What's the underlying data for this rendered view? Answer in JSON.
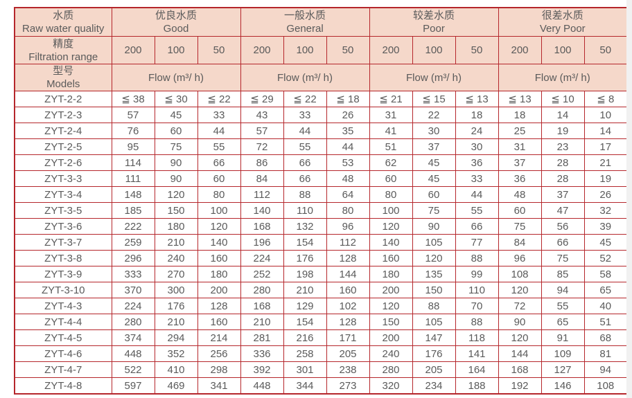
{
  "colors": {
    "border": "#b5262b",
    "header_fill": "#f5d8ca",
    "text": "#5a5a5a",
    "scrollbar_track": "#f1f1f1"
  },
  "table": {
    "col1": {
      "quality": {
        "zh": "水质",
        "en": "Raw water quality"
      },
      "precision": {
        "zh": "精度",
        "en": "Filtration range"
      },
      "models": {
        "zh": "型号",
        "en": "Models"
      }
    },
    "quality_groups": [
      {
        "zh": "优良水质",
        "en": "Good"
      },
      {
        "zh": "一般水质",
        "en": "General"
      },
      {
        "zh": "较差水质",
        "en": "Poor"
      },
      {
        "zh": "很差水质",
        "en": "Very Poor"
      }
    ],
    "precision_values": [
      "200",
      "100",
      "50",
      "200",
      "100",
      "50",
      "200",
      "100",
      "50",
      "200",
      "100",
      "50"
    ],
    "flow_label": "Flow (m³/ h)",
    "rows": [
      {
        "model": "ZYT-2-2",
        "values": [
          "≦ 38",
          "≦ 30",
          "≦ 22",
          "≦ 29",
          "≦ 22",
          "≦ 18",
          "≦ 21",
          "≦ 15",
          "≦ 13",
          "≦ 13",
          "≦ 10",
          "≦ 8"
        ]
      },
      {
        "model": "ZYT-2-3",
        "values": [
          "57",
          "45",
          "33",
          "43",
          "33",
          "26",
          "31",
          "22",
          "18",
          "18",
          "14",
          "10"
        ]
      },
      {
        "model": "ZYT-2-4",
        "values": [
          "76",
          "60",
          "44",
          "57",
          "44",
          "35",
          "41",
          "30",
          "24",
          "25",
          "19",
          "14"
        ]
      },
      {
        "model": "ZYT-2-5",
        "values": [
          "95",
          "75",
          "55",
          "72",
          "55",
          "44",
          "51",
          "37",
          "30",
          "31",
          "23",
          "17"
        ]
      },
      {
        "model": "ZYT-2-6",
        "values": [
          "114",
          "90",
          "66",
          "86",
          "66",
          "53",
          "62",
          "45",
          "36",
          "37",
          "28",
          "21"
        ]
      },
      {
        "model": "ZYT-3-3",
        "values": [
          "111",
          "90",
          "60",
          "84",
          "66",
          "48",
          "60",
          "45",
          "33",
          "36",
          "28",
          "19"
        ]
      },
      {
        "model": "ZYT-3-4",
        "values": [
          "148",
          "120",
          "80",
          "112",
          "88",
          "64",
          "80",
          "60",
          "44",
          "48",
          "37",
          "26"
        ]
      },
      {
        "model": "ZYT-3-5",
        "values": [
          "185",
          "150",
          "100",
          "140",
          "110",
          "80",
          "100",
          "75",
          "55",
          "60",
          "47",
          "32"
        ]
      },
      {
        "model": "ZYT-3-6",
        "values": [
          "222",
          "180",
          "120",
          "168",
          "132",
          "96",
          "120",
          "90",
          "66",
          "75",
          "56",
          "39"
        ]
      },
      {
        "model": "ZYT-3-7",
        "values": [
          "259",
          "210",
          "140",
          "196",
          "154",
          "112",
          "140",
          "105",
          "77",
          "84",
          "66",
          "45"
        ]
      },
      {
        "model": "ZYT-3-8",
        "values": [
          "296",
          "240",
          "160",
          "224",
          "176",
          "128",
          "160",
          "120",
          "88",
          "96",
          "75",
          "52"
        ]
      },
      {
        "model": "ZYT-3-9",
        "values": [
          "333",
          "270",
          "180",
          "252",
          "198",
          "144",
          "180",
          "135",
          "99",
          "108",
          "85",
          "58"
        ]
      },
      {
        "model": "ZYT-3-10",
        "values": [
          "370",
          "300",
          "200",
          "280",
          "210",
          "160",
          "200",
          "150",
          "110",
          "120",
          "94",
          "65"
        ]
      },
      {
        "model": "ZYT-4-3",
        "values": [
          "224",
          "176",
          "128",
          "168",
          "129",
          "102",
          "120",
          "88",
          "70",
          "72",
          "55",
          "40"
        ]
      },
      {
        "model": "ZYT-4-4",
        "values": [
          "280",
          "210",
          "160",
          "210",
          "154",
          "128",
          "150",
          "105",
          "88",
          "90",
          "65",
          "51"
        ]
      },
      {
        "model": "ZYT-4-5",
        "values": [
          "374",
          "294",
          "214",
          "281",
          "216",
          "171",
          "200",
          "147",
          "118",
          "120",
          "91",
          "68"
        ]
      },
      {
        "model": "ZYT-4-6",
        "values": [
          "448",
          "352",
          "256",
          "336",
          "258",
          "205",
          "240",
          "176",
          "141",
          "144",
          "109",
          "81"
        ]
      },
      {
        "model": "ZYT-4-7",
        "values": [
          "522",
          "410",
          "298",
          "392",
          "301",
          "238",
          "280",
          "205",
          "164",
          "168",
          "127",
          "94"
        ]
      },
      {
        "model": "ZYT-4-8",
        "values": [
          "597",
          "469",
          "341",
          "448",
          "344",
          "273",
          "320",
          "234",
          "188",
          "192",
          "146",
          "108"
        ]
      }
    ]
  }
}
